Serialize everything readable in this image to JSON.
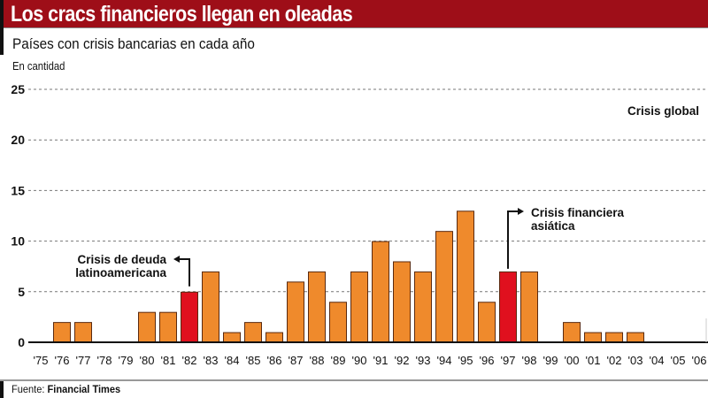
{
  "header": {
    "title": "Los cracs financieros llegan en oleadas",
    "subtitle": "Países con crisis bancarias en cada año",
    "unit": "En cantidad"
  },
  "footer": {
    "label": "Fuente:",
    "source": "Financial Times"
  },
  "colors": {
    "title_bg": "#9e0e18",
    "bar": "#ef8a2c",
    "bar_highlight": "#e0101e",
    "bar_outline": "#5a2a10"
  },
  "chart_data": {
    "type": "bar",
    "title": "Los cracs financieros llegan en oleadas",
    "subtitle": "Países con crisis bancarias en cada año",
    "xlabel": "",
    "ylabel": "En cantidad",
    "ylim": [
      0,
      25
    ],
    "yticks": [
      0,
      5,
      10,
      15,
      20,
      25
    ],
    "grid": true,
    "categories": [
      "'75",
      "'76",
      "'77",
      "'78",
      "'79",
      "'80",
      "'81",
      "'82",
      "'83",
      "'84",
      "'85",
      "'86",
      "'87",
      "'88",
      "'89",
      "'90",
      "'91",
      "'92",
      "'93",
      "'94",
      "'95",
      "'96",
      "'97",
      "'98",
      "'99",
      "'00",
      "'01",
      "'02",
      "'03",
      "'04",
      "'05",
      "'06"
    ],
    "values": [
      0,
      2,
      2,
      0,
      0,
      3,
      3,
      5,
      7,
      1,
      2,
      1,
      6,
      7,
      4,
      7,
      10,
      8,
      7,
      11,
      13,
      4,
      7,
      7,
      0,
      2,
      1,
      1,
      1,
      0,
      0,
      0
    ],
    "highlighted": [
      "'82",
      "'97"
    ],
    "annotations": [
      {
        "target": "'82",
        "lines": [
          "Crisis de deuda",
          "latinoamericana"
        ],
        "arrow": "left"
      },
      {
        "target": "'97",
        "lines": [
          "Crisis financiera",
          "asiática"
        ],
        "arrow": "right"
      },
      {
        "target": null,
        "lines": [
          "Crisis global"
        ],
        "arrow": null
      }
    ]
  }
}
